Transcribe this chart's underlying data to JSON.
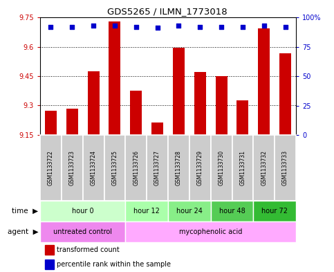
{
  "title": "GDS5265 / ILMN_1773018",
  "samples": [
    "GSM1133722",
    "GSM1133723",
    "GSM1133724",
    "GSM1133725",
    "GSM1133726",
    "GSM1133727",
    "GSM1133728",
    "GSM1133729",
    "GSM1133730",
    "GSM1133731",
    "GSM1133732",
    "GSM1133733"
  ],
  "bar_values": [
    9.275,
    9.285,
    9.475,
    9.73,
    9.375,
    9.215,
    9.595,
    9.47,
    9.45,
    9.325,
    9.695,
    9.565
  ],
  "percentile_values": [
    92,
    92,
    93,
    93,
    92,
    91,
    93,
    92,
    92,
    92,
    93,
    92
  ],
  "y_min": 9.15,
  "y_max": 9.75,
  "y_ticks": [
    9.15,
    9.3,
    9.45,
    9.6,
    9.75
  ],
  "y_tick_labels": [
    "9.15",
    "9.3",
    "9.45",
    "9.6",
    "9.75"
  ],
  "y2_ticks": [
    0,
    25,
    50,
    75,
    100
  ],
  "y2_tick_labels": [
    "0",
    "25",
    "50",
    "75",
    "100%"
  ],
  "bar_color": "#cc0000",
  "dot_color": "#0000cc",
  "bar_width": 0.55,
  "time_groups": [
    {
      "label": "hour 0",
      "start": 0,
      "end": 3
    },
    {
      "label": "hour 12",
      "start": 4,
      "end": 5
    },
    {
      "label": "hour 24",
      "start": 6,
      "end": 7
    },
    {
      "label": "hour 48",
      "start": 8,
      "end": 9
    },
    {
      "label": "hour 72",
      "start": 10,
      "end": 11
    }
  ],
  "time_colors": [
    "#ccffcc",
    "#aaffaa",
    "#88ee88",
    "#55cc55",
    "#33bb33"
  ],
  "agent_groups": [
    {
      "label": "untreated control",
      "start": 0,
      "end": 3
    },
    {
      "label": "mycophenolic acid",
      "start": 4,
      "end": 11
    }
  ],
  "agent_colors": [
    "#ee88ee",
    "#ffaaff"
  ],
  "legend_bar_label": "transformed count",
  "legend_dot_label": "percentile rank within the sample",
  "tick_color_left": "#cc0000",
  "tick_color_right": "#0000cc",
  "sample_box_color": "#cccccc",
  "figure_bg": "#ffffff"
}
